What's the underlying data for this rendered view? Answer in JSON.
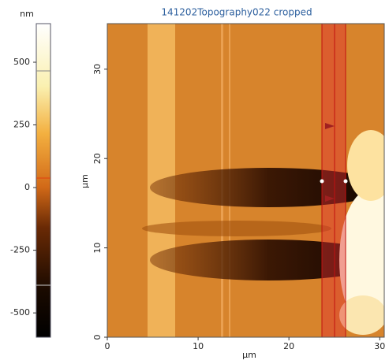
{
  "chart_data": {
    "type": "image",
    "title": "141202Topography022 cropped",
    "xlabel": "µm",
    "ylabel": "µm",
    "xlim": [
      0,
      30.5
    ],
    "xticks": [
      0,
      10,
      20,
      30
    ],
    "ylim": [
      0,
      35.1
    ],
    "yticks": [
      0,
      10,
      20,
      30
    ],
    "colorbar": {
      "label": "nm",
      "lim": [
        -597,
        654
      ],
      "ticks": [
        -500,
        -250,
        0,
        250,
        500
      ]
    }
  }
}
